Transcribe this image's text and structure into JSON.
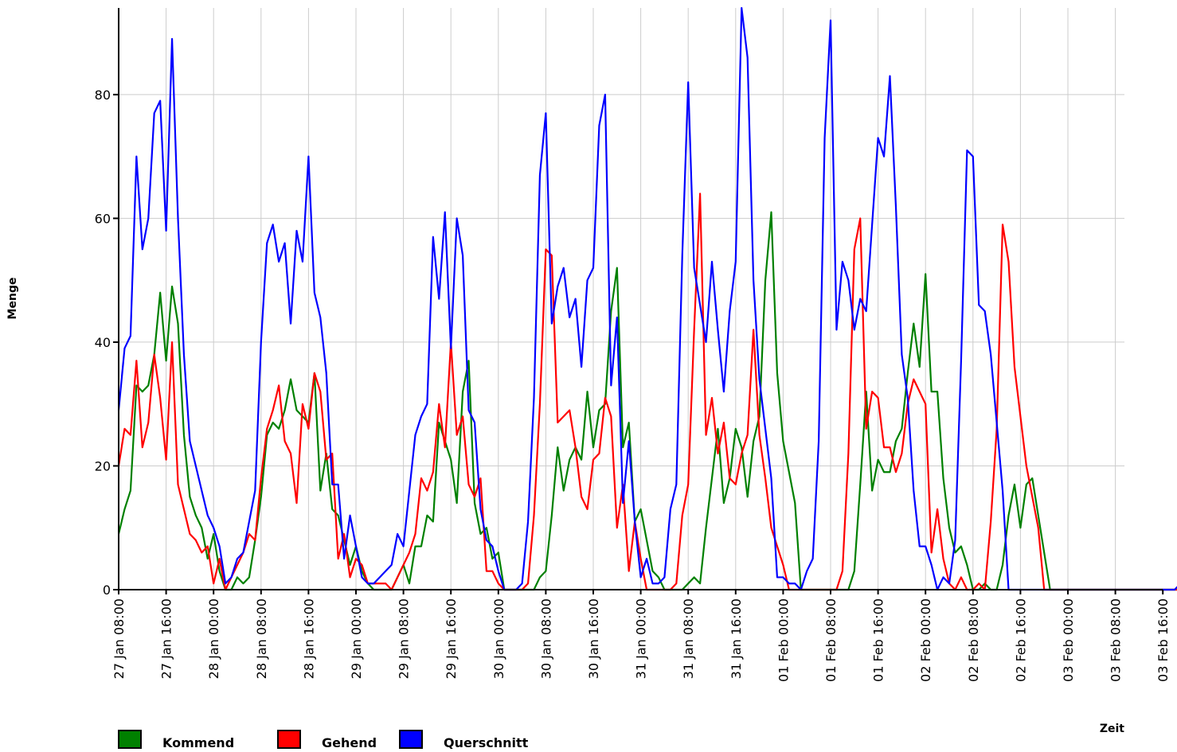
{
  "chart_data": {
    "type": "line",
    "title": "",
    "xlabel": "Zeit",
    "ylabel": "Menge",
    "ylim": [
      0,
      94
    ],
    "grid": true,
    "legend_position": "bottom-left",
    "x_ticks": [
      "27 Jan 08:00",
      "27 Jan 16:00",
      "28 Jan 00:00",
      "28 Jan 08:00",
      "28 Jan 16:00",
      "29 Jan 00:00",
      "29 Jan 08:00",
      "29 Jan 16:00",
      "30 Jan 00:00",
      "30 Jan 08:00",
      "30 Jan 16:00",
      "31 Jan 00:00",
      "31 Jan 08:00",
      "31 Jan 16:00",
      "01 Feb 00:00",
      "01 Feb 08:00",
      "01 Feb 16:00",
      "02 Feb 00:00",
      "02 Feb 08:00",
      "02 Feb 16:00",
      "03 Feb 00:00",
      "03 Feb 08:00",
      "03 Feb 16:00"
    ],
    "y_ticks": [
      0,
      20,
      40,
      60,
      80
    ],
    "x_start": "27 Jan 08:00",
    "x_step_hours": 1,
    "series": [
      {
        "name": "Kommend",
        "color": "#008000",
        "values": [
          9,
          13,
          16,
          33,
          32,
          33,
          38,
          48,
          37,
          49,
          43,
          25,
          15,
          12,
          10,
          5,
          9,
          3,
          0,
          0,
          2,
          1,
          2,
          8,
          15,
          25,
          27,
          26,
          29,
          34,
          29,
          28,
          27,
          35,
          16,
          22,
          13,
          12,
          8,
          4,
          7,
          3,
          1,
          0,
          0,
          0,
          0,
          2,
          4,
          1,
          7,
          7,
          12,
          11,
          27,
          24,
          21,
          14,
          32,
          37,
          14,
          9,
          10,
          5,
          6,
          0,
          0,
          0,
          0,
          0,
          0,
          2,
          3,
          12,
          23,
          16,
          21,
          23,
          21,
          32,
          23,
          29,
          30,
          45,
          52,
          23,
          27,
          11,
          13,
          8,
          3,
          2,
          0,
          0,
          0,
          0,
          1,
          2,
          1,
          10,
          18,
          26,
          14,
          18,
          26,
          23,
          15,
          24,
          28,
          50,
          61,
          35,
          24,
          19,
          14,
          0,
          0,
          0,
          0,
          0,
          0,
          0,
          0,
          0,
          3,
          17,
          32,
          16,
          21,
          19,
          19,
          24,
          26,
          35,
          43,
          36,
          51,
          32,
          32,
          18,
          10,
          6,
          7,
          4,
          0,
          0,
          1,
          0,
          0,
          4,
          12,
          17,
          10,
          17,
          18,
          12,
          6,
          0,
          0,
          0,
          0,
          0,
          0,
          0,
          0,
          0,
          0,
          0,
          0,
          0,
          0,
          0,
          0,
          0,
          0,
          0,
          0,
          0,
          0,
          0,
          0,
          0,
          0,
          0
        ]
      },
      {
        "name": "Gehend",
        "color": "#ff0000",
        "values": [
          20,
          26,
          25,
          37,
          23,
          27,
          38,
          31,
          21,
          40,
          17,
          13,
          9,
          8,
          6,
          7,
          1,
          5,
          0,
          2,
          4,
          6,
          9,
          8,
          18,
          26,
          29,
          33,
          24,
          22,
          14,
          30,
          26,
          35,
          32,
          21,
          22,
          5,
          9,
          2,
          5,
          4,
          1,
          1,
          1,
          1,
          0,
          2,
          4,
          6,
          9,
          18,
          16,
          19,
          30,
          23,
          40,
          25,
          28,
          17,
          15,
          18,
          3,
          3,
          1,
          0,
          0,
          0,
          0,
          1,
          12,
          30,
          55,
          54,
          27,
          28,
          29,
          23,
          15,
          13,
          21,
          22,
          31,
          28,
          10,
          17,
          3,
          11,
          5,
          0,
          0,
          0,
          0,
          0,
          1,
          12,
          17,
          42,
          64,
          25,
          31,
          22,
          27,
          18,
          17,
          22,
          25,
          42,
          25,
          18,
          10,
          7,
          4,
          0,
          0,
          0,
          0,
          0,
          0,
          0,
          0,
          0,
          3,
          22,
          55,
          60,
          26,
          32,
          31,
          23,
          23,
          19,
          22,
          30,
          34,
          32,
          30,
          6,
          13,
          5,
          1,
          0,
          2,
          0,
          0,
          1,
          0,
          11,
          26,
          59,
          53,
          36,
          28,
          20,
          15,
          10,
          0,
          0,
          0,
          0,
          0,
          0,
          0,
          0,
          0,
          0,
          0,
          0,
          0,
          0,
          0,
          0,
          0,
          0,
          0,
          0,
          0,
          0,
          0,
          0,
          0,
          0,
          0,
          0
        ]
      },
      {
        "name": "Querschnitt",
        "color": "#0000ff",
        "values": [
          29,
          39,
          41,
          70,
          55,
          60,
          77,
          79,
          58,
          89,
          60,
          38,
          24,
          20,
          16,
          12,
          10,
          7,
          1,
          2,
          5,
          6,
          11,
          16,
          40,
          56,
          59,
          53,
          56,
          43,
          58,
          53,
          70,
          48,
          44,
          35,
          17,
          17,
          5,
          12,
          7,
          2,
          1,
          1,
          2,
          3,
          4,
          9,
          7,
          16,
          25,
          28,
          30,
          57,
          47,
          61,
          39,
          60,
          54,
          29,
          27,
          13,
          8,
          7,
          3,
          0,
          0,
          0,
          1,
          11,
          31,
          67,
          77,
          43,
          49,
          52,
          44,
          47,
          36,
          50,
          52,
          75,
          80,
          33,
          44,
          14,
          24,
          11,
          2,
          5,
          1,
          1,
          2,
          13,
          17,
          54,
          82,
          52,
          46,
          40,
          53,
          42,
          32,
          45,
          53,
          94,
          86,
          50,
          34,
          26,
          18,
          2,
          2,
          1,
          1,
          0,
          3,
          5,
          24,
          73,
          92,
          42,
          53,
          50,
          42,
          47,
          45,
          59,
          73,
          70,
          83,
          62,
          38,
          31,
          16,
          7,
          7,
          4,
          0,
          2,
          1,
          8,
          37,
          71,
          70,
          46,
          45,
          38,
          27,
          16,
          0,
          0,
          0,
          0,
          0,
          0,
          0,
          0,
          0,
          0,
          0,
          0,
          0,
          0,
          0,
          0,
          0,
          0,
          0,
          0,
          0,
          0,
          0,
          0,
          0,
          0,
          0,
          0,
          0,
          1
        ]
      }
    ]
  }
}
